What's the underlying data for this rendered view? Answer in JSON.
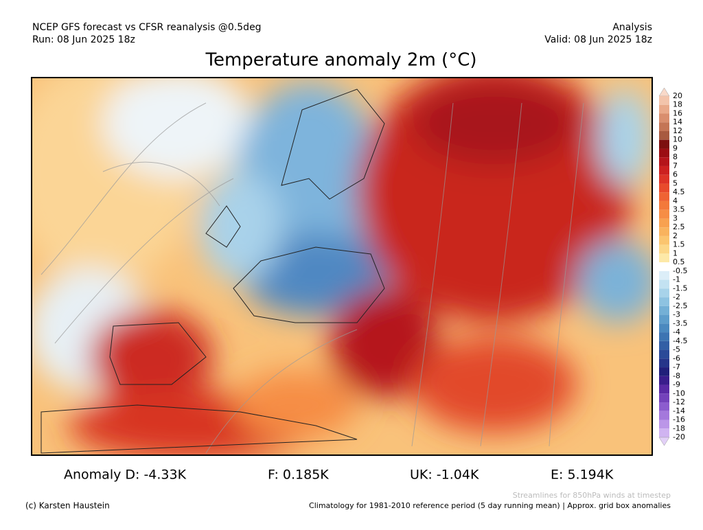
{
  "header": {
    "model": "NCEP GFS forecast vs CFSR reanalysis @0.5deg",
    "run": "Run: 08 Jun 2025 18z",
    "kind": "Analysis",
    "valid": "Valid: 08 Jun 2025 18z"
  },
  "title": "Temperature anomaly 2m (°C)",
  "colorbar": {
    "labels": [
      "20",
      "18",
      "16",
      "14",
      "12",
      "10",
      "9",
      "8",
      "7",
      "6",
      "5",
      "4.5",
      "4",
      "3.5",
      "3",
      "2.5",
      "2",
      "1.5",
      "1",
      "0.5",
      "-0.5",
      "-1",
      "-1.5",
      "-2",
      "-2.5",
      "-3",
      "-3.5",
      "-4",
      "-4.5",
      "-5",
      "-6",
      "-7",
      "-8",
      "-9",
      "-10",
      "-12",
      "-14",
      "-16",
      "-18",
      "-20"
    ],
    "colors": [
      "#f9d9c9",
      "#f3c4ab",
      "#e9a98a",
      "#d98e6e",
      "#c47556",
      "#a85a40",
      "#7d0f0f",
      "#9b0d12",
      "#b5141a",
      "#cc2020",
      "#dd3327",
      "#e84a2c",
      "#ef6333",
      "#f3793b",
      "#f68d45",
      "#f8a150",
      "#f9b35e",
      "#fbc56f",
      "#fcd788",
      "#fde9a8",
      "#ffffff",
      "#dceef8",
      "#c3e2f2",
      "#a8d3ea",
      "#8ec3e1",
      "#74b0d6",
      "#5e9dcb",
      "#4b89bf",
      "#3d74b2",
      "#335fa5",
      "#2b4a98",
      "#25358a",
      "#201f7a",
      "#3a1d8c",
      "#5a2aa5",
      "#7442bb",
      "#8c5cce",
      "#a478dc",
      "#bb96e8",
      "#d0b4f1",
      "#e2d0f7"
    ]
  },
  "anomalies": [
    "Anomaly D: -4.33K",
    "F: 0.185K",
    "UK: -1.04K",
    "E: 5.194K"
  ],
  "footer": {
    "streamlines": "Streamlines for 850hPa winds at timestep",
    "copyright": "(c) Karsten Haustein",
    "climatology": "Climatology for 1981-2010 reference period (5 day running mean) | Approx. grid box anomalies"
  }
}
